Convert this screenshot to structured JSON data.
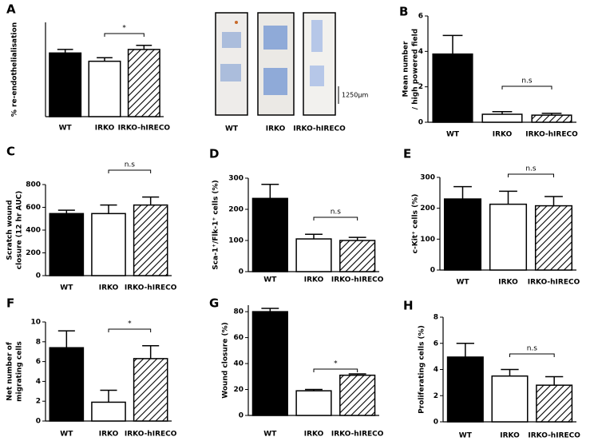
{
  "chart_data": [
    {
      "type": "bar",
      "panel": "A",
      "ylabel": [
        "% re-endothelialisation"
      ],
      "categories": [
        "WT",
        "IRKO",
        "IRKO-hIRECO"
      ],
      "values": [
        54,
        47,
        57
      ],
      "errors": [
        3,
        3,
        3.5
      ],
      "colors": [
        "#000000",
        "#ffffff",
        "#000000"
      ],
      "hatched": [
        false,
        false,
        true
      ],
      "ylim": [
        0,
        80
      ],
      "annotation": "*",
      "image_labels": [
        "WT",
        "IRKO",
        "IRKO-hIRECO"
      ],
      "scale_bar_label": "1250µm"
    },
    {
      "type": "bar",
      "panel": "B",
      "ylabel": [
        "Mean number",
        "/ high powered field"
      ],
      "categories": [
        "WT",
        "IRKO",
        "IRKO-hIRECO"
      ],
      "values": [
        3.85,
        0.45,
        0.4
      ],
      "errors": [
        1.05,
        0.15,
        0.1
      ],
      "colors": [
        "#000000",
        "#ffffff",
        "#000000"
      ],
      "hatched": [
        false,
        false,
        true
      ],
      "ylim": [
        0,
        6
      ],
      "yticks": [
        0,
        2,
        4,
        6
      ],
      "annotation": "n.s"
    },
    {
      "type": "bar",
      "panel": "C",
      "ylabel": [
        "Scratch wound",
        "closure (12 hr AUC)"
      ],
      "categories": [
        "WT",
        "IRKO",
        "IRKO-hIRECO"
      ],
      "values": [
        545,
        545,
        620
      ],
      "errors": [
        30,
        75,
        70
      ],
      "colors": [
        "#000000",
        "#ffffff",
        "#000000"
      ],
      "hatched": [
        false,
        false,
        true
      ],
      "ylim": [
        0,
        800
      ],
      "yticks": [
        0,
        200,
        400,
        600,
        800
      ],
      "annotation": "n.s"
    },
    {
      "type": "bar",
      "panel": "D",
      "ylabel": [
        "Sca-1⁺/Flk-1⁺ cells (%)"
      ],
      "categories": [
        "WT",
        "IRKO",
        "IRKO-hIRECO"
      ],
      "values": [
        235,
        105,
        100
      ],
      "errors": [
        45,
        15,
        10
      ],
      "colors": [
        "#000000",
        "#ffffff",
        "#000000"
      ],
      "hatched": [
        false,
        false,
        true
      ],
      "ylim": [
        0,
        300
      ],
      "yticks": [
        0,
        100,
        200,
        300
      ],
      "annotation": "n.s"
    },
    {
      "type": "bar",
      "panel": "E",
      "ylabel": [
        "c-Kit⁺ cells (%)"
      ],
      "categories": [
        "WT",
        "IRKO",
        "IRKO-hIRECO"
      ],
      "values": [
        230,
        213,
        208
      ],
      "errors": [
        40,
        42,
        30
      ],
      "colors": [
        "#000000",
        "#ffffff",
        "#000000"
      ],
      "hatched": [
        false,
        false,
        true
      ],
      "ylim": [
        0,
        300
      ],
      "yticks": [
        0,
        100,
        200,
        300
      ],
      "annotation": "n.s"
    },
    {
      "type": "bar",
      "panel": "F",
      "ylabel": [
        "Net number of",
        "migrating cells"
      ],
      "categories": [
        "WT",
        "IRKO",
        "IRKO-hIRECO"
      ],
      "values": [
        7.4,
        1.9,
        6.3
      ],
      "errors": [
        1.7,
        1.2,
        1.3
      ],
      "colors": [
        "#000000",
        "#ffffff",
        "#000000"
      ],
      "hatched": [
        false,
        false,
        true
      ],
      "ylim": [
        0,
        10
      ],
      "yticks": [
        0,
        2,
        4,
        6,
        8,
        10
      ],
      "annotation": "*"
    },
    {
      "type": "bar",
      "panel": "G",
      "ylabel": [
        "Wound closure (%)"
      ],
      "categories": [
        "WT",
        "IRKO",
        "IRKO-hIRECO"
      ],
      "values": [
        80,
        19,
        31
      ],
      "errors": [
        2.5,
        1,
        1
      ],
      "colors": [
        "#000000",
        "#ffffff",
        "#000000"
      ],
      "hatched": [
        false,
        false,
        true
      ],
      "ylim": [
        0,
        85
      ],
      "yticks": [
        0,
        20,
        40,
        60,
        80
      ],
      "annotation": "*"
    },
    {
      "type": "bar",
      "panel": "H",
      "ylabel": [
        "Proliferating cells (%)"
      ],
      "categories": [
        "WT",
        "IRKO",
        "IRKO-hIRECO"
      ],
      "values": [
        4.95,
        3.5,
        2.8
      ],
      "errors": [
        1.05,
        0.5,
        0.65
      ],
      "colors": [
        "#000000",
        "#ffffff",
        "#000000"
      ],
      "hatched": [
        false,
        false,
        true
      ],
      "ylim": [
        0,
        8
      ],
      "yticks": [
        0,
        2,
        4,
        6,
        8
      ],
      "annotation": "n.s"
    }
  ]
}
